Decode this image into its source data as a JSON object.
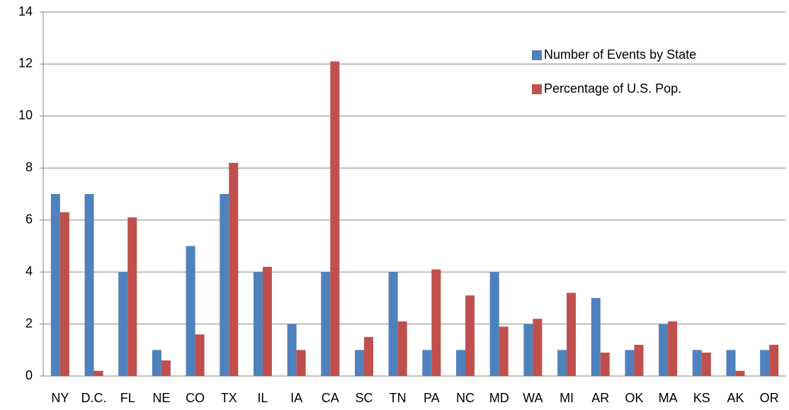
{
  "chart_data": {
    "type": "bar",
    "categories": [
      "NY",
      "D.C.",
      "FL",
      "NE",
      "CO",
      "TX",
      "IL",
      "IA",
      "CA",
      "SC",
      "TN",
      "PA",
      "NC",
      "MD",
      "WA",
      "MI",
      "AR",
      "OK",
      "MA",
      "KS",
      "AK",
      "OR"
    ],
    "series": [
      {
        "name": "Number of Events by State",
        "color": "#4f81bd",
        "values": [
          7,
          7,
          4,
          1,
          5,
          7,
          4,
          2,
          4,
          1,
          4,
          1,
          1,
          4,
          2,
          1,
          3,
          1,
          2,
          1,
          1,
          1
        ]
      },
      {
        "name": "Percentage of U.S. Pop.",
        "color": "#c0504d",
        "values": [
          6.3,
          0.2,
          6.1,
          0.6,
          1.6,
          8.2,
          4.2,
          1,
          12.1,
          1.5,
          2.1,
          4.1,
          3.1,
          1.9,
          2.2,
          3.2,
          0.9,
          1.2,
          2.1,
          0.9,
          0.2,
          1.2
        ]
      }
    ],
    "ylim": [
      0,
      14
    ],
    "yticks": [
      0,
      2,
      4,
      6,
      8,
      10,
      12,
      14
    ],
    "grid": true,
    "legend": "top-right"
  }
}
